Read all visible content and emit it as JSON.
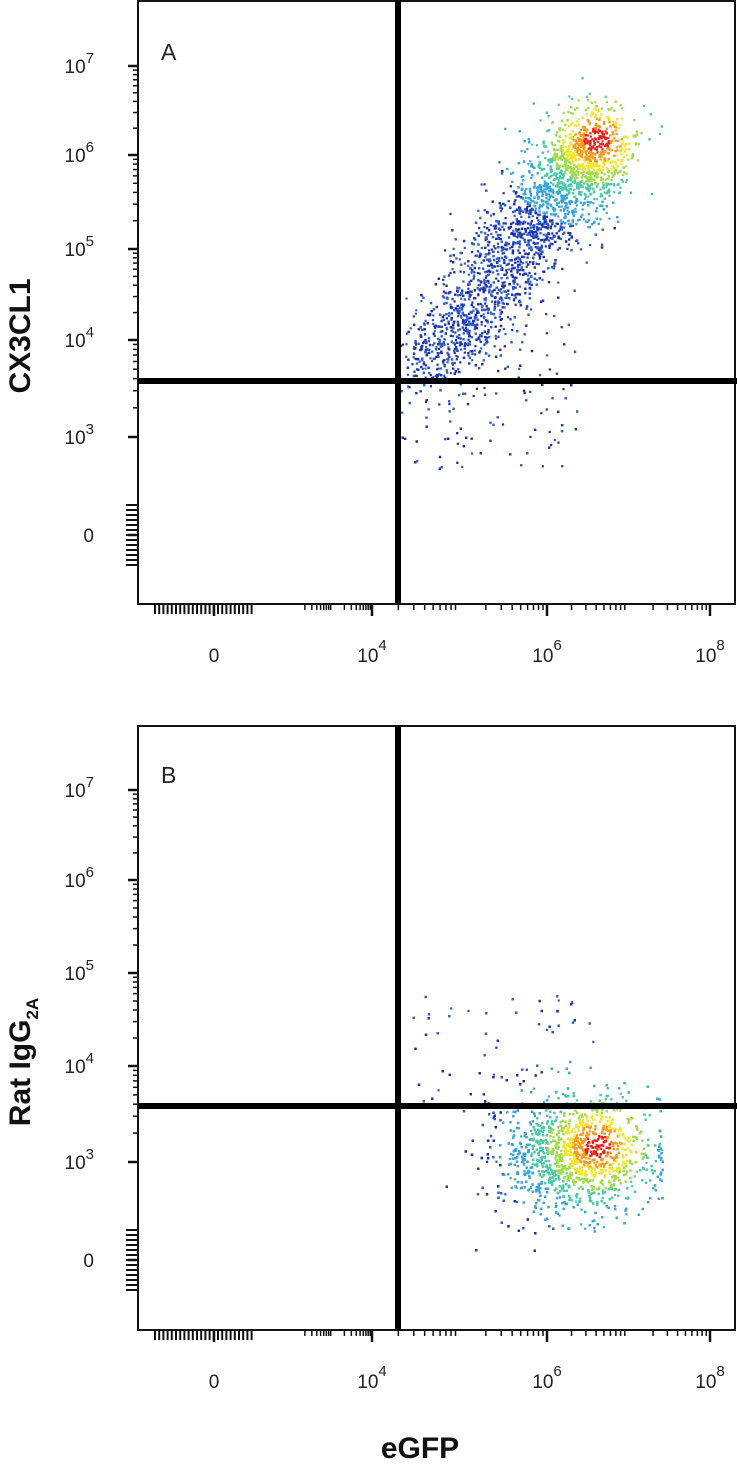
{
  "chart_data": [
    {
      "type": "scatter",
      "panel_label": "A",
      "ylabel": "CX3CL1",
      "xlabel": "",
      "x_scale": "biexponential",
      "y_scale": "biexponential",
      "x_ticks": [
        {
          "base": "0",
          "exp": ""
        },
        {
          "base": "10",
          "exp": "4"
        },
        {
          "base": "10",
          "exp": "6"
        },
        {
          "base": "10",
          "exp": "8"
        }
      ],
      "y_ticks": [
        {
          "base": "0",
          "exp": ""
        },
        {
          "base": "10",
          "exp": "3"
        },
        {
          "base": "10",
          "exp": "4"
        },
        {
          "base": "10",
          "exp": "5"
        },
        {
          "base": "10",
          "exp": "6"
        },
        {
          "base": "10",
          "exp": "7"
        }
      ],
      "quadrant_gate": {
        "x": 20000,
        "y": 3000
      },
      "population": {
        "center_x": 4000000,
        "center_y": 1500000,
        "lower_left_x": 200000,
        "lower_left_y": 10000
      },
      "colors": [
        "#1e2ea8",
        "#2e5fc7",
        "#3aa5d8",
        "#4cc9a8",
        "#9fdc4b",
        "#f1e52e",
        "#f39c1d",
        "#e8231c"
      ]
    },
    {
      "type": "scatter",
      "panel_label": "B",
      "ylabel": "Rat IgG",
      "ylabel_sub": "2A",
      "xlabel": "eGFP",
      "x_scale": "biexponential",
      "y_scale": "biexponential",
      "x_ticks": [
        {
          "base": "0",
          "exp": ""
        },
        {
          "base": "10",
          "exp": "4"
        },
        {
          "base": "10",
          "exp": "6"
        },
        {
          "base": "10",
          "exp": "8"
        }
      ],
      "y_ticks": [
        {
          "base": "0",
          "exp": ""
        },
        {
          "base": "10",
          "exp": "3"
        },
        {
          "base": "10",
          "exp": "4"
        },
        {
          "base": "10",
          "exp": "5"
        },
        {
          "base": "10",
          "exp": "6"
        },
        {
          "base": "10",
          "exp": "7"
        }
      ],
      "quadrant_gate": {
        "x": 20000,
        "y": 3000
      },
      "population": {
        "center_x": 4000000,
        "center_y": 1500,
        "lower_left_x": 300000,
        "lower_left_y": 600
      },
      "colors": [
        "#1e2ea8",
        "#2e5fc7",
        "#3aa5d8",
        "#4cc9a8",
        "#9fdc4b",
        "#f1e52e",
        "#f39c1d",
        "#e8231c"
      ]
    }
  ]
}
